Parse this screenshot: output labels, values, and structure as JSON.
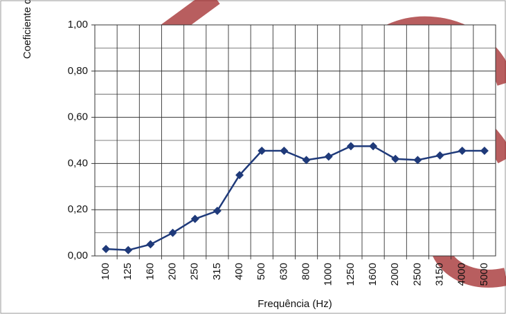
{
  "chart_data": {
    "type": "line",
    "x_label": "Frequência (Hz)",
    "y_label": "Coeficiente de absorção (αₛ)",
    "categories": [
      "100",
      "125",
      "160",
      "200",
      "250",
      "315",
      "400",
      "500",
      "630",
      "800",
      "1000",
      "1250",
      "1600",
      "2000",
      "2500",
      "3150",
      "4000",
      "5000"
    ],
    "series": [
      {
        "name": "Coeficiente de absorção",
        "color": "#1f3a7a",
        "values": [
          0.03,
          0.025,
          0.05,
          0.1,
          0.16,
          0.195,
          0.35,
          0.455,
          0.455,
          0.415,
          0.43,
          0.475,
          0.475,
          0.42,
          0.415,
          0.435,
          0.455,
          0.455
        ]
      }
    ],
    "ylim": [
      0,
      1
    ],
    "yticks": [
      {
        "value": 0,
        "label": "0,00"
      },
      {
        "value": 0.2,
        "label": "0,20"
      },
      {
        "value": 0.4,
        "label": "0,40"
      },
      {
        "value": 0.6,
        "label": "0,60"
      },
      {
        "value": 0.8,
        "label": "0,80"
      },
      {
        "value": 1,
        "label": "1,00"
      }
    ],
    "grid": true
  }
}
